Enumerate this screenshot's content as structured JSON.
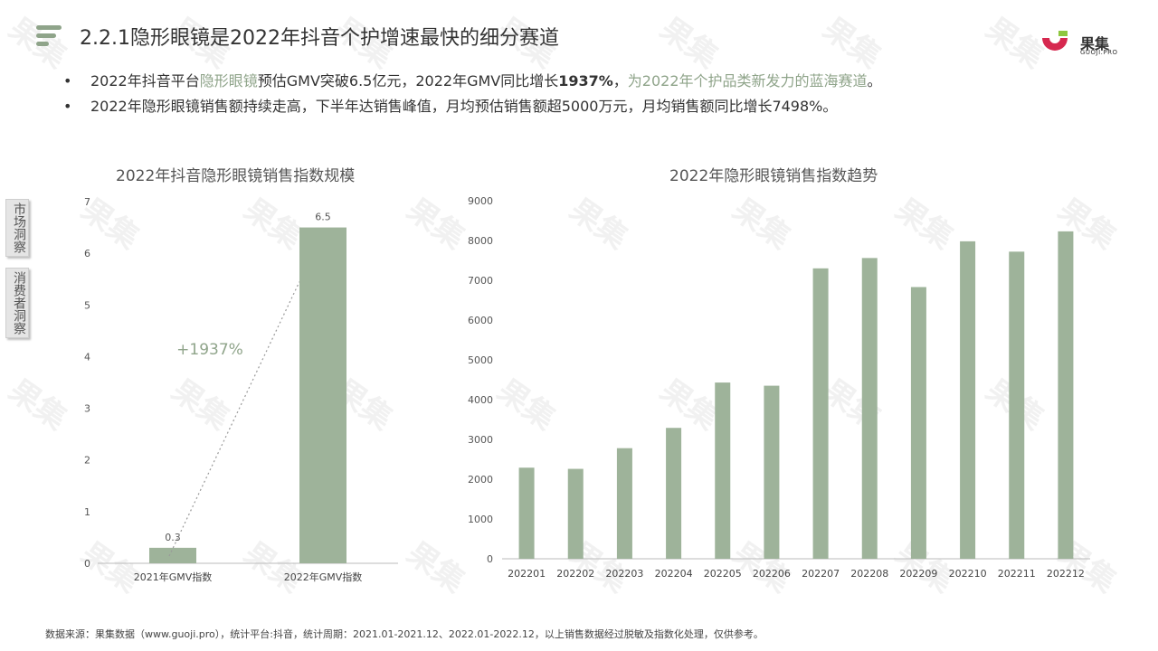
{
  "page": {
    "title": "2.2.1隐形眼镜是2022年抖音个护增速最快的细分赛道",
    "logo_text": "果集",
    "logo_sub": "GUOJI.PRO",
    "watermark_text": "果集"
  },
  "bullets": [
    {
      "p1": "2022年抖音平台",
      "p2": "隐形眼镜",
      "p3": "预估GMV突破6.5亿元，2022年GMV同比增长",
      "p4": "1937%",
      "p5": "，",
      "p6": "为2022年个护品类新发力的蓝海赛道",
      "p7": "。"
    },
    {
      "p1": "2022年隐形眼镜销售额持续走高，下半年达销售峰值，月均预估销售额超5000万元，月均销售额同比增长7498%。"
    }
  ],
  "side_tabs": [
    {
      "label": "市场洞察"
    },
    {
      "label": "消费者洞察"
    }
  ],
  "footnote": "数据来源：果集数据（www.guoji.pro），统计平台:抖音，统计周期：2021.01-2021.12、2022.01-2022.12，以上销售数据经过脱敏及指数化处理，仅供参考。",
  "colors": {
    "bar": "#9eb39a",
    "accent": "#8fa48a",
    "logo_red": "#d6284f",
    "logo_green": "#8ec63f"
  },
  "chart_data": [
    {
      "type": "bar",
      "title": "2022年抖音隐形眼镜销售指数规模",
      "categories": [
        "2021年GMV指数",
        "2022年GMV指数"
      ],
      "values": [
        0.3,
        6.5
      ],
      "data_labels": [
        "0.3",
        "6.5"
      ],
      "ylim": [
        0,
        7
      ],
      "yticks": [
        0,
        1,
        2,
        3,
        4,
        5,
        6,
        7
      ],
      "annotation": "+1937%",
      "grid": false
    },
    {
      "type": "bar",
      "title": "2022年隐形眼镜销售指数趋势",
      "categories": [
        "202201",
        "202202",
        "202203",
        "202204",
        "202205",
        "202206",
        "202207",
        "202208",
        "202209",
        "202210",
        "202211",
        "202212"
      ],
      "values": [
        2290,
        2260,
        2780,
        3290,
        4430,
        4350,
        7300,
        7560,
        6830,
        7980,
        7720,
        8230
      ],
      "ylim": [
        0,
        9000
      ],
      "yticks": [
        0,
        1000,
        2000,
        3000,
        4000,
        5000,
        6000,
        7000,
        8000,
        9000
      ],
      "grid": false
    }
  ]
}
